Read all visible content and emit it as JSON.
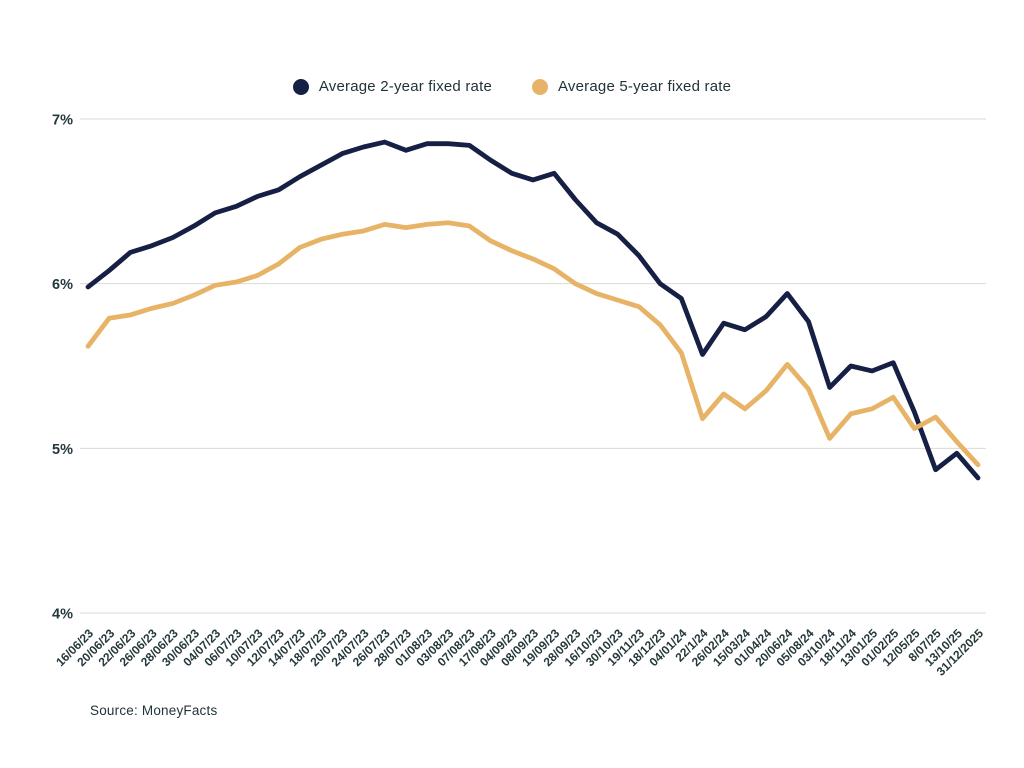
{
  "legend": {
    "items": [
      {
        "label": "Average 2-year fixed rate",
        "color": "#161f44"
      },
      {
        "label": "Average 5-year fixed rate",
        "color": "#e7b467"
      }
    ]
  },
  "source": "Source: MoneyFacts",
  "chart_data": {
    "type": "line",
    "title": "",
    "xlabel": "",
    "ylabel": "",
    "ytick_format": "percent",
    "yticks": [
      7,
      6,
      5,
      4
    ],
    "ytick_labels": [
      "7%",
      "6%",
      "5%",
      "4%"
    ],
    "ylim": [
      4,
      7
    ],
    "grid": "horizontal",
    "gridline_color": "#d9d9d9",
    "axis_text_color": "#25383c",
    "legend_position": "top-center",
    "categories": [
      "16/06/23",
      "20/06/23",
      "22/06/23",
      "26/06/23",
      "28/06/23",
      "30/06/23",
      "04/07/23",
      "06/07/23",
      "10/07/23",
      "12/07/23",
      "14/07/23",
      "18/07/23",
      "20/07/23",
      "24/07/23",
      "26/07/23",
      "28/07/23",
      "01/08/23",
      "03/08/23",
      "07/08/23",
      "17/08/23",
      "04/09/23",
      "08/09/23",
      "19/09/23",
      "28/09/23",
      "16/10/23",
      "30/10/23",
      "19/11/23",
      "18/12/23",
      "04/01/24",
      "22/1/24",
      "26/02/24",
      "15/03/24",
      "01/04/24",
      "20/06/24",
      "05/08/24",
      "03/10/24",
      "18/11/24",
      "13/01/25",
      "01/02/25",
      "12/05/25",
      "8/07/25",
      "13/10/25",
      "31/12/2025"
    ],
    "series": [
      {
        "name": "Average 2-year fixed rate",
        "color": "#161f44",
        "values": [
          5.98,
          6.08,
          6.19,
          6.23,
          6.28,
          6.35,
          6.43,
          6.47,
          6.53,
          6.57,
          6.65,
          6.72,
          6.79,
          6.83,
          6.86,
          6.81,
          6.85,
          6.85,
          6.84,
          6.75,
          6.67,
          6.63,
          6.67,
          6.51,
          6.37,
          6.3,
          6.17,
          6.0,
          5.91,
          5.57,
          5.76,
          5.72,
          5.8,
          5.94,
          5.77,
          5.37,
          5.5,
          5.47,
          5.52,
          5.22,
          4.87,
          4.97,
          4.82
        ]
      },
      {
        "name": "Average 5-year fixed rate",
        "color": "#e7b467",
        "values": [
          5.62,
          5.79,
          5.81,
          5.85,
          5.88,
          5.93,
          5.99,
          6.01,
          6.05,
          6.12,
          6.22,
          6.27,
          6.3,
          6.32,
          6.36,
          6.34,
          6.36,
          6.37,
          6.35,
          6.26,
          6.2,
          6.15,
          6.09,
          6.0,
          5.94,
          5.9,
          5.86,
          5.75,
          5.58,
          5.18,
          5.33,
          5.24,
          5.35,
          5.51,
          5.36,
          5.06,
          5.21,
          5.24,
          5.31,
          5.12,
          5.19,
          5.04,
          4.9
        ]
      }
    ]
  }
}
